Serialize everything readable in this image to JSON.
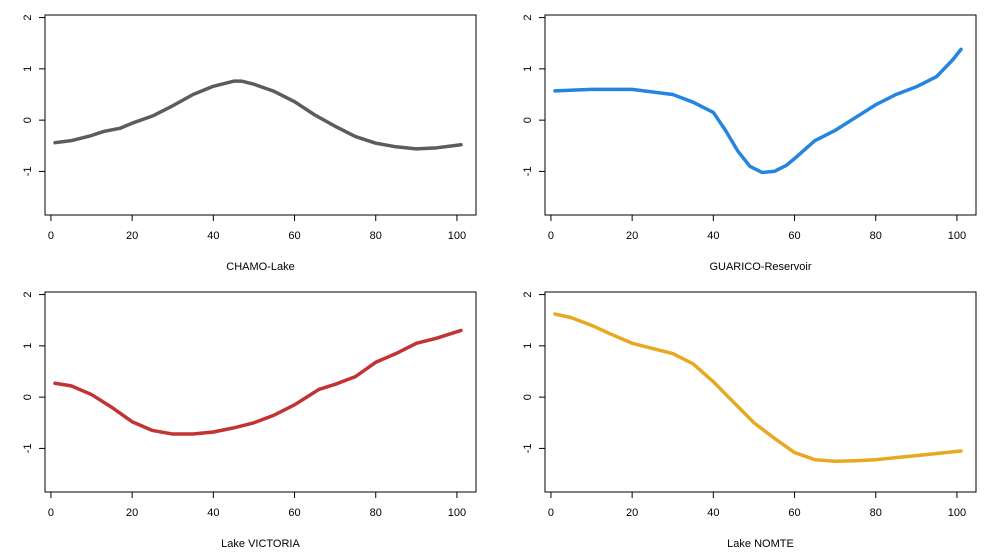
{
  "chart_data": [
    {
      "type": "line",
      "title": "",
      "xlabel": "CHAMO-Lake",
      "ylabel": "",
      "xlim": [
        1,
        101
      ],
      "ylim": [
        -1.85,
        2.05
      ],
      "x_ticks": [
        "0",
        "20",
        "40",
        "60",
        "80",
        "100"
      ],
      "y_ticks": [
        "-1",
        "0",
        "1",
        "2"
      ],
      "color": "#5c5c5c",
      "series": [
        {
          "x": [
            1,
            5,
            10,
            13,
            17,
            20,
            25,
            30,
            35,
            40,
            45,
            47,
            50,
            55,
            60,
            65,
            70,
            75,
            80,
            85,
            90,
            95,
            101
          ],
          "values": [
            -0.44,
            -0.4,
            -0.3,
            -0.22,
            -0.16,
            -0.06,
            0.08,
            0.28,
            0.5,
            0.66,
            0.76,
            0.76,
            0.7,
            0.56,
            0.36,
            0.1,
            -0.12,
            -0.32,
            -0.45,
            -0.52,
            -0.56,
            -0.54,
            -0.48
          ]
        }
      ]
    },
    {
      "type": "line",
      "title": "",
      "xlabel": "GUARICO-Reservoir",
      "ylabel": "",
      "xlim": [
        1,
        101
      ],
      "ylim": [
        -1.85,
        2.05
      ],
      "x_ticks": [
        "0",
        "20",
        "40",
        "60",
        "80",
        "100"
      ],
      "y_ticks": [
        "-1",
        "0",
        "1",
        "2"
      ],
      "color": "#2484e0",
      "series": [
        {
          "x": [
            1,
            10,
            20,
            30,
            35,
            40,
            43,
            46,
            49,
            52,
            55,
            58,
            60,
            65,
            70,
            75,
            80,
            85,
            90,
            95,
            99,
            101
          ],
          "values": [
            0.57,
            0.6,
            0.6,
            0.5,
            0.35,
            0.15,
            -0.2,
            -0.6,
            -0.9,
            -1.02,
            -1.0,
            -0.88,
            -0.75,
            -0.4,
            -0.2,
            0.05,
            0.3,
            0.5,
            0.65,
            0.85,
            1.18,
            1.38
          ]
        }
      ]
    },
    {
      "type": "line",
      "title": "",
      "xlabel": "Lake VICTORIA",
      "ylabel": "",
      "xlim": [
        1,
        101
      ],
      "ylim": [
        -1.85,
        2.05
      ],
      "x_ticks": [
        "0",
        "20",
        "40",
        "60",
        "80",
        "100"
      ],
      "y_ticks": [
        "-1",
        "0",
        "1",
        "2"
      ],
      "color": "#c23333",
      "series": [
        {
          "x": [
            1,
            5,
            10,
            15,
            20,
            25,
            30,
            35,
            40,
            45,
            50,
            55,
            60,
            63,
            66,
            70,
            75,
            80,
            85,
            90,
            95,
            101
          ],
          "values": [
            0.27,
            0.22,
            0.05,
            -0.2,
            -0.48,
            -0.65,
            -0.72,
            -0.72,
            -0.68,
            -0.6,
            -0.5,
            -0.35,
            -0.15,
            0.0,
            0.15,
            0.25,
            0.4,
            0.68,
            0.85,
            1.05,
            1.15,
            1.3
          ]
        }
      ]
    },
    {
      "type": "line",
      "title": "",
      "xlabel": "Lake NOMTE",
      "ylabel": "",
      "xlim": [
        1,
        101
      ],
      "ylim": [
        -1.85,
        2.05
      ],
      "x_ticks": [
        "0",
        "20",
        "40",
        "60",
        "80",
        "100"
      ],
      "y_ticks": [
        "-1",
        "0",
        "1",
        "2"
      ],
      "color": "#e8a820",
      "series": [
        {
          "x": [
            1,
            5,
            10,
            15,
            20,
            25,
            30,
            35,
            40,
            45,
            50,
            55,
            60,
            65,
            70,
            75,
            80,
            85,
            90,
            95,
            101
          ],
          "values": [
            1.62,
            1.55,
            1.4,
            1.22,
            1.05,
            0.95,
            0.85,
            0.65,
            0.3,
            -0.1,
            -0.5,
            -0.8,
            -1.08,
            -1.22,
            -1.25,
            -1.24,
            -1.22,
            -1.18,
            -1.14,
            -1.1,
            -1.05
          ]
        }
      ]
    }
  ]
}
